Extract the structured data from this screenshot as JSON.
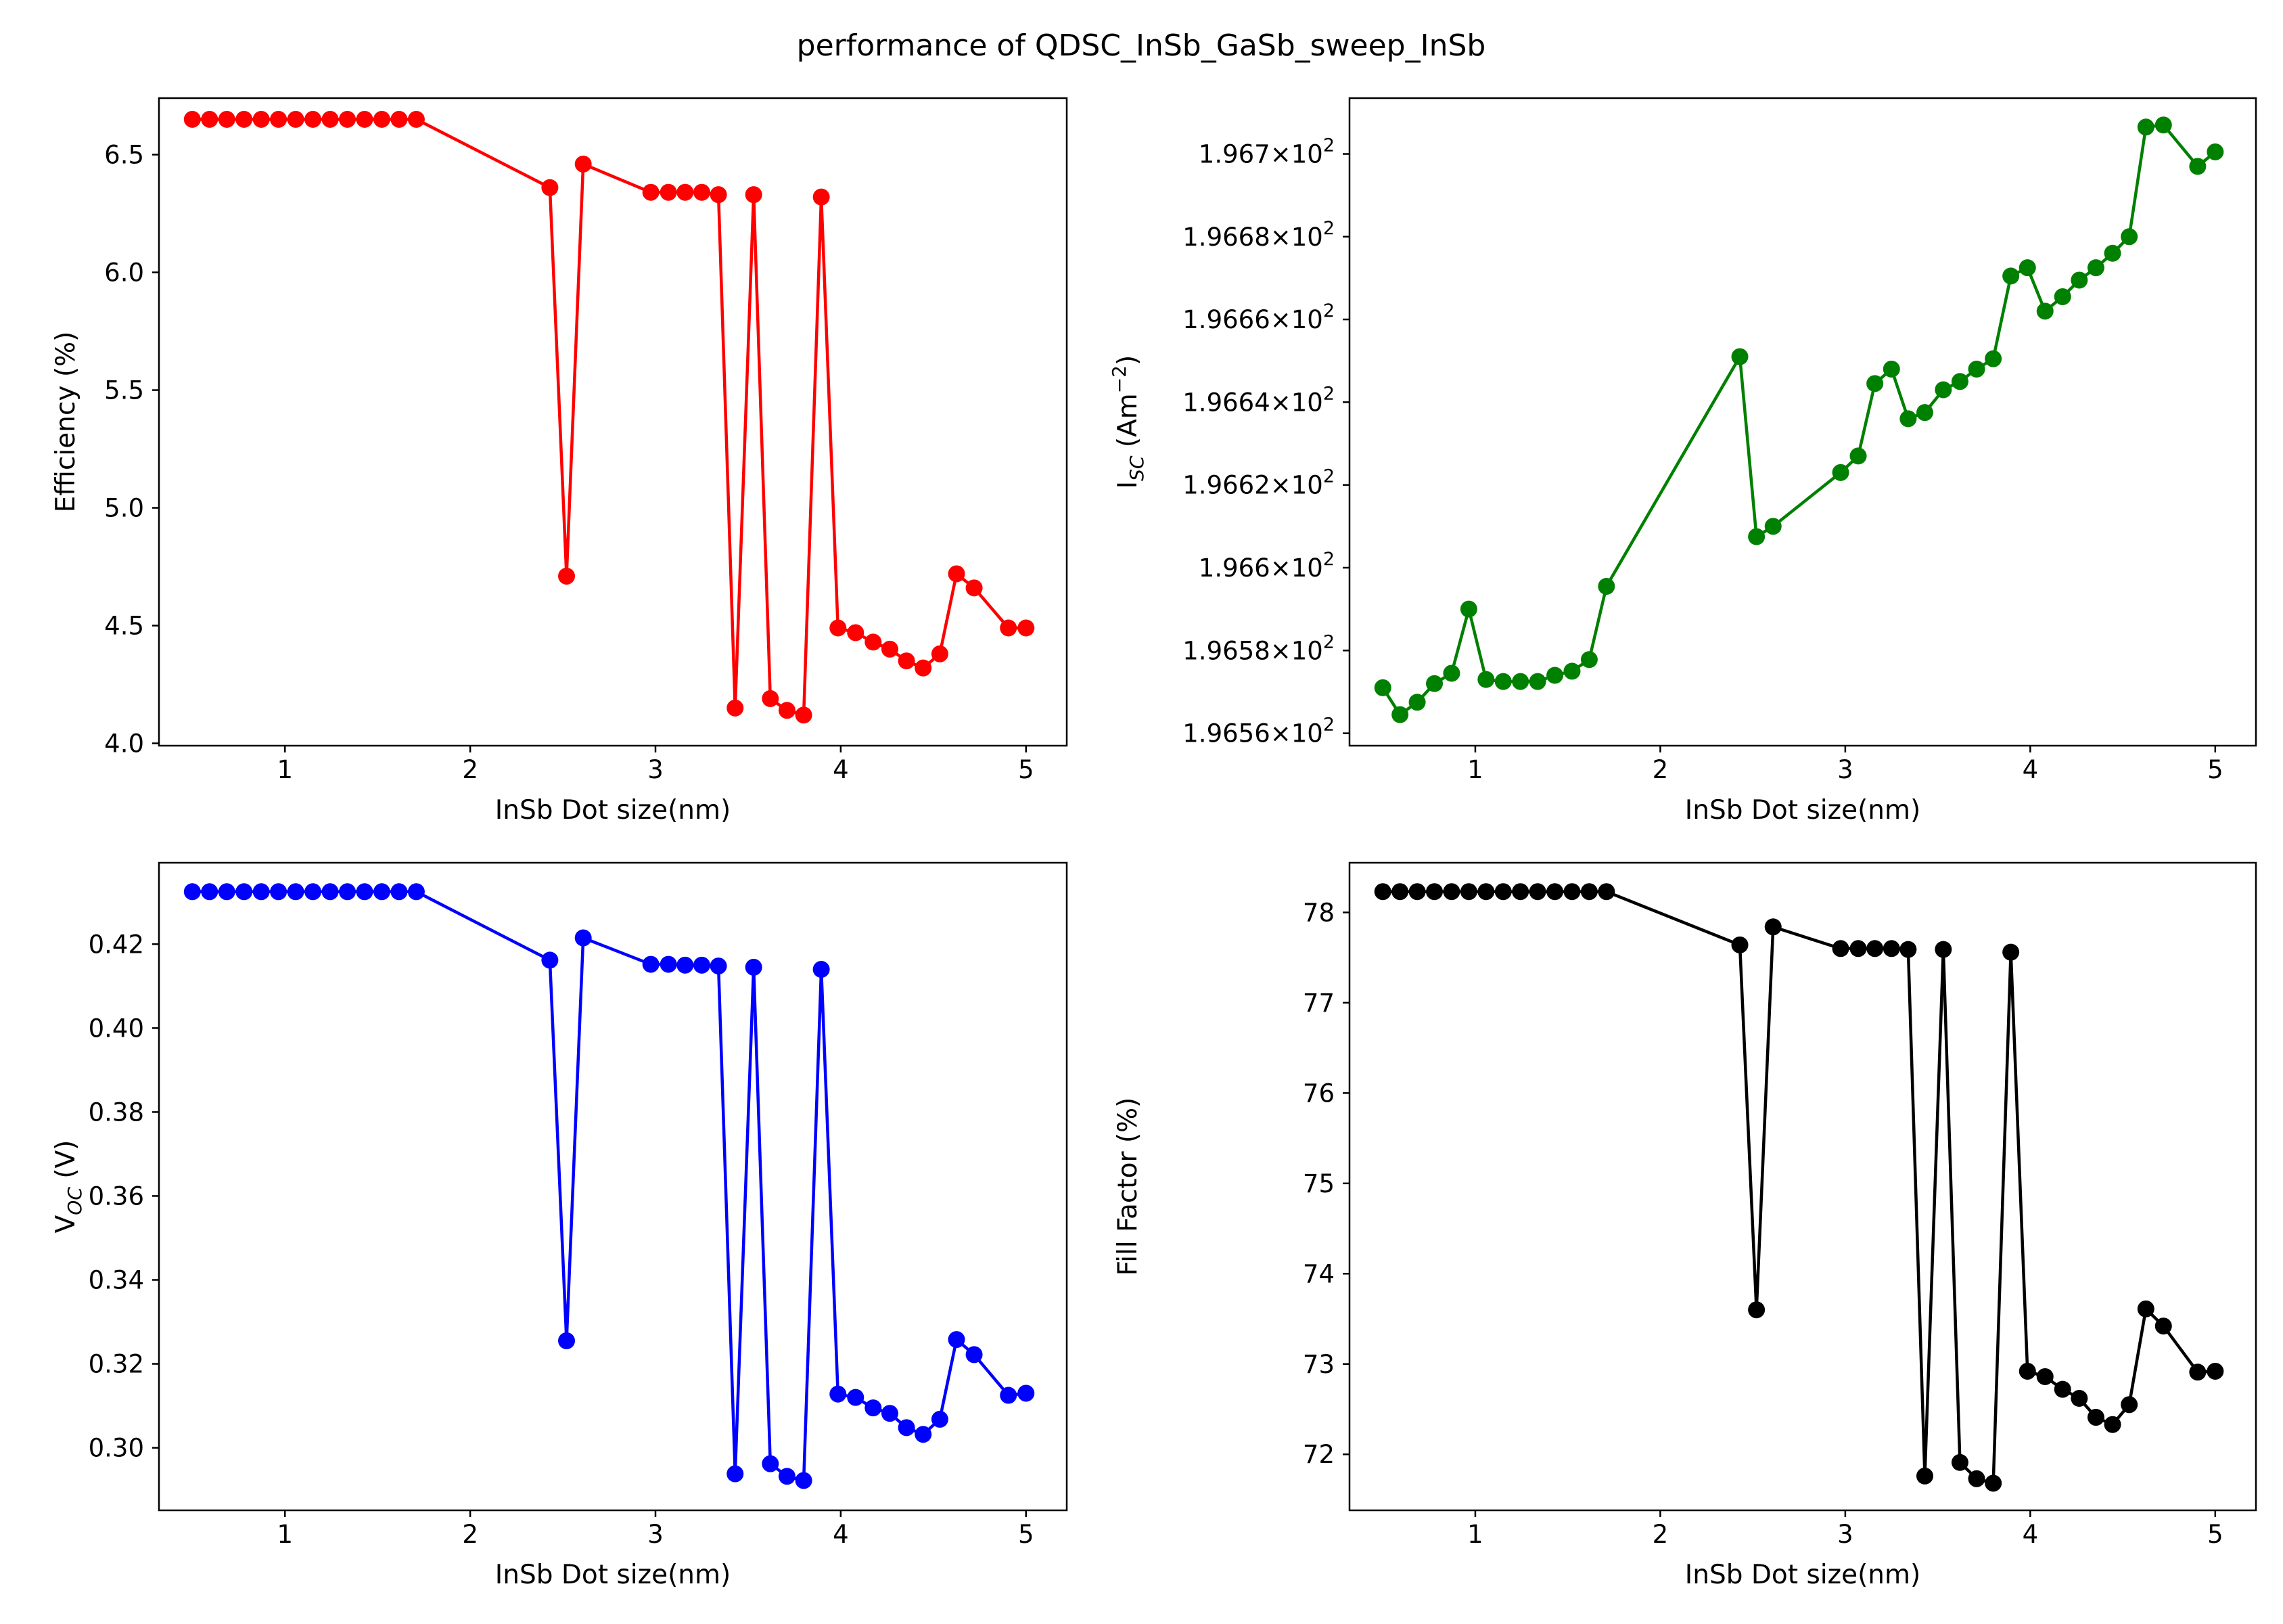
{
  "figure": {
    "title": "performance of QDSC_InSb_GaSb_sweep_InSb"
  },
  "chart_data": [
    {
      "type": "line",
      "panel": "top-left",
      "xlabel": "InSb Dot size(nm)",
      "ylabel": "Efficiency (%)",
      "color": "#ff0000",
      "xlim": [
        0.32,
        5.22
      ],
      "ylim": [
        3.99,
        6.74
      ],
      "x_ticks": [
        1,
        2,
        3,
        4,
        5
      ],
      "x_tick_labels": [
        "1",
        "2",
        "3",
        "4",
        "5"
      ],
      "y_ticks": [
        4.0,
        4.5,
        5.0,
        5.5,
        6.0,
        6.5
      ],
      "y_tick_labels": [
        "4.0",
        "4.5",
        "5.0",
        "5.5",
        "6.0",
        "6.5"
      ],
      "x": [
        0.5,
        0.593,
        0.686,
        0.779,
        0.872,
        0.965,
        1.058,
        1.151,
        1.244,
        1.337,
        1.43,
        1.523,
        1.616,
        1.709,
        2.43,
        2.52,
        2.61,
        2.975,
        3.07,
        3.16,
        3.25,
        3.34,
        3.43,
        3.53,
        3.62,
        3.71,
        3.8,
        3.895,
        3.985,
        4.08,
        4.175,
        4.265,
        4.355,
        4.445,
        4.535,
        4.625,
        4.72,
        4.905,
        5.0
      ],
      "series": [
        {
          "values": [
            6.65,
            6.65,
            6.65,
            6.65,
            6.65,
            6.65,
            6.65,
            6.65,
            6.65,
            6.65,
            6.65,
            6.65,
            6.65,
            6.65,
            6.36,
            4.71,
            6.46,
            6.34,
            6.34,
            6.34,
            6.34,
            6.33,
            4.15,
            6.33,
            4.19,
            4.14,
            4.12,
            6.32,
            4.49,
            4.47,
            4.43,
            4.4,
            4.35,
            4.32,
            4.38,
            4.72,
            4.66,
            4.49,
            4.49
          ]
        }
      ]
    },
    {
      "type": "line",
      "panel": "top-right",
      "xlabel": "InSb Dot size(nm)",
      "ylabel": "I_SC (Am^-2)",
      "ylabel_base": "I",
      "ylabel_sub": "SC",
      "ylabel_unit_pre": "(Am",
      "ylabel_unit_sup": "−2",
      "ylabel_unit_post": ")",
      "tick_mult": "×",
      "tick_exp": "2",
      "color": "#008000",
      "yscale": "log",
      "xlim": [
        0.32,
        5.22
      ],
      "ylim": [
        196.557,
        196.7135
      ],
      "x_ticks": [
        1,
        2,
        3,
        4,
        5
      ],
      "x_tick_labels": [
        "1",
        "2",
        "3",
        "4",
        "5"
      ],
      "y_ticks": [
        196.56,
        196.58,
        196.6,
        196.62,
        196.64,
        196.66,
        196.68,
        196.7
      ],
      "y_tick_mantissas": [
        "1.9656",
        "1.9658",
        "1.966",
        "1.9662",
        "1.9664",
        "1.9666",
        "1.9668",
        "1.967"
      ],
      "x": [
        0.5,
        0.593,
        0.686,
        0.779,
        0.872,
        0.965,
        1.058,
        1.151,
        1.244,
        1.337,
        1.43,
        1.523,
        1.616,
        1.709,
        2.43,
        2.52,
        2.61,
        2.975,
        3.07,
        3.16,
        3.25,
        3.34,
        3.43,
        3.53,
        3.62,
        3.71,
        3.8,
        3.895,
        3.985,
        4.08,
        4.175,
        4.265,
        4.355,
        4.445,
        4.535,
        4.625,
        4.72,
        4.905,
        5.0
      ],
      "series": [
        {
          "values": [
            196.571,
            196.5645,
            196.5675,
            196.572,
            196.5745,
            196.59,
            196.573,
            196.5725,
            196.5725,
            196.5725,
            196.574,
            196.575,
            196.5778,
            196.5955,
            196.651,
            196.6075,
            196.61,
            196.623,
            196.627,
            196.6445,
            196.648,
            196.636,
            196.6375,
            196.643,
            196.645,
            196.648,
            196.6505,
            196.6705,
            196.6725,
            196.662,
            196.6655,
            196.6695,
            196.6725,
            196.676,
            196.68,
            196.7065,
            196.707,
            196.697,
            196.7005
          ]
        }
      ]
    },
    {
      "type": "line",
      "panel": "bottom-left",
      "xlabel": "InSb Dot size(nm)",
      "ylabel": "V_OC (V)",
      "ylabel_base": "V",
      "ylabel_sub": "OC",
      "ylabel_unit": "(V)",
      "color": "#0000ff",
      "xlim": [
        0.32,
        5.22
      ],
      "ylim": [
        0.2851,
        0.4394
      ],
      "x_ticks": [
        1,
        2,
        3,
        4,
        5
      ],
      "x_tick_labels": [
        "1",
        "2",
        "3",
        "4",
        "5"
      ],
      "y_ticks": [
        0.3,
        0.32,
        0.34,
        0.36,
        0.38,
        0.4,
        0.42
      ],
      "y_tick_labels": [
        "0.30",
        "0.32",
        "0.34",
        "0.36",
        "0.38",
        "0.40",
        "0.42"
      ],
      "x": [
        0.5,
        0.593,
        0.686,
        0.779,
        0.872,
        0.965,
        1.058,
        1.151,
        1.244,
        1.337,
        1.43,
        1.523,
        1.616,
        1.709,
        2.43,
        2.52,
        2.61,
        2.975,
        3.07,
        3.16,
        3.25,
        3.34,
        3.43,
        3.53,
        3.62,
        3.71,
        3.8,
        3.895,
        3.985,
        4.08,
        4.175,
        4.265,
        4.355,
        4.445,
        4.535,
        4.625,
        4.72,
        4.905,
        5.0
      ],
      "series": [
        {
          "values": [
            0.4325,
            0.4325,
            0.4325,
            0.4325,
            0.4325,
            0.4325,
            0.4325,
            0.4325,
            0.4325,
            0.4325,
            0.4325,
            0.4325,
            0.4325,
            0.4325,
            0.4162,
            0.3255,
            0.4215,
            0.4152,
            0.4152,
            0.415,
            0.415,
            0.4148,
            0.2938,
            0.4145,
            0.2962,
            0.2932,
            0.2922,
            0.414,
            0.3128,
            0.312,
            0.3095,
            0.3082,
            0.3048,
            0.3032,
            0.3068,
            0.3258,
            0.3222,
            0.3125,
            0.313
          ]
        }
      ]
    },
    {
      "type": "line",
      "panel": "bottom-right",
      "xlabel": "InSb Dot size(nm)",
      "ylabel": "Fill Factor (%)",
      "color": "#000000",
      "xlim": [
        0.32,
        5.22
      ],
      "ylim": [
        71.38,
        78.55
      ],
      "x_ticks": [
        1,
        2,
        3,
        4,
        5
      ],
      "x_tick_labels": [
        "1",
        "2",
        "3",
        "4",
        "5"
      ],
      "y_ticks": [
        72,
        73,
        74,
        75,
        76,
        77,
        78
      ],
      "y_tick_labels": [
        "72",
        "73",
        "74",
        "75",
        "76",
        "77",
        "78"
      ],
      "x": [
        0.5,
        0.593,
        0.686,
        0.779,
        0.872,
        0.965,
        1.058,
        1.151,
        1.244,
        1.337,
        1.43,
        1.523,
        1.616,
        1.709,
        2.43,
        2.52,
        2.61,
        2.975,
        3.07,
        3.16,
        3.25,
        3.34,
        3.43,
        3.53,
        3.62,
        3.71,
        3.8,
        3.895,
        3.985,
        4.08,
        4.175,
        4.265,
        4.355,
        4.445,
        4.535,
        4.625,
        4.72,
        4.905,
        5.0
      ],
      "series": [
        {
          "values": [
            78.23,
            78.23,
            78.23,
            78.23,
            78.23,
            78.23,
            78.23,
            78.23,
            78.23,
            78.23,
            78.23,
            78.23,
            78.23,
            78.23,
            77.64,
            73.6,
            77.84,
            77.6,
            77.6,
            77.6,
            77.6,
            77.59,
            71.76,
            77.59,
            71.91,
            71.73,
            71.68,
            77.56,
            72.92,
            72.86,
            72.72,
            72.62,
            72.41,
            72.33,
            72.55,
            73.61,
            73.42,
            72.91,
            72.92
          ]
        }
      ]
    }
  ]
}
